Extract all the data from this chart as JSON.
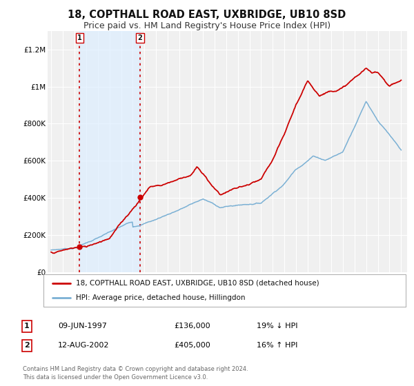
{
  "title": "18, COPTHALL ROAD EAST, UXBRIDGE, UB10 8SD",
  "subtitle": "Price paid vs. HM Land Registry's House Price Index (HPI)",
  "ylim": [
    0,
    1300000
  ],
  "xlim_start": 1994.7,
  "xlim_end": 2025.5,
  "yticks": [
    0,
    200000,
    400000,
    600000,
    800000,
    1000000,
    1200000
  ],
  "ytick_labels": [
    "£0",
    "£200K",
    "£400K",
    "£600K",
    "£800K",
    "£1M",
    "£1.2M"
  ],
  "xticks": [
    1995,
    1996,
    1997,
    1998,
    1999,
    2000,
    2001,
    2002,
    2003,
    2004,
    2005,
    2006,
    2007,
    2008,
    2009,
    2010,
    2011,
    2012,
    2013,
    2014,
    2015,
    2016,
    2017,
    2018,
    2019,
    2020,
    2021,
    2022,
    2023,
    2024,
    2025
  ],
  "price_color": "#cc0000",
  "hpi_color": "#7ab0d4",
  "background_color": "#ffffff",
  "plot_bg_color": "#f0f0f0",
  "grid_color": "#ffffff",
  "sale1_date": 1997.44,
  "sale1_price": 136000,
  "sale1_label": "1",
  "sale2_date": 2002.62,
  "sale2_price": 405000,
  "sale2_label": "2",
  "shade_color": "#ddeeff",
  "legend_line1": "18, COPTHALL ROAD EAST, UXBRIDGE, UB10 8SD (detached house)",
  "legend_line2": "HPI: Average price, detached house, Hillingdon",
  "table_row1_num": "1",
  "table_row1_date": "09-JUN-1997",
  "table_row1_price": "£136,000",
  "table_row1_hpi": "19% ↓ HPI",
  "table_row2_num": "2",
  "table_row2_date": "12-AUG-2002",
  "table_row2_price": "£405,000",
  "table_row2_hpi": "16% ↑ HPI",
  "footer": "Contains HM Land Registry data © Crown copyright and database right 2024.\nThis data is licensed under the Open Government Licence v3.0.",
  "title_fontsize": 10.5,
  "subtitle_fontsize": 9
}
